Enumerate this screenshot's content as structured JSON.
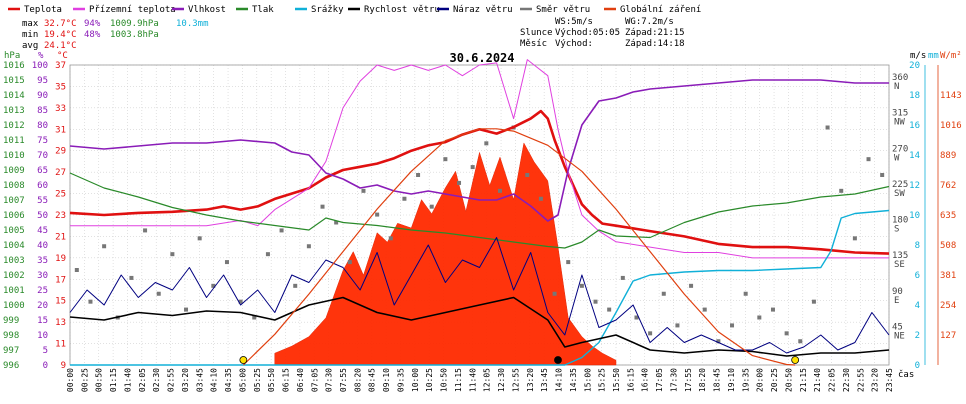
{
  "legend": [
    {
      "label": "Teplota",
      "color": "#e01010"
    },
    {
      "label": "Přízemní teplota",
      "color": "#e040e0"
    },
    {
      "label": "Vlhkost",
      "color": "#8a1cb8"
    },
    {
      "label": "Tlak",
      "color": "#2a8a2a"
    },
    {
      "label": "Srážky",
      "color": "#10b0d8"
    },
    {
      "label": "Rychlost větru",
      "color": "#000000"
    },
    {
      "label": "Náraz větru",
      "color": "#000080"
    },
    {
      "label": "Směr větru",
      "color": "#777777"
    },
    {
      "label": "Globální záření",
      "color": "#e04010"
    }
  ],
  "stats": {
    "max_label": "max",
    "max_temp": "32.7°C",
    "max_hum": "94%",
    "max_press": "1009.9hPa",
    "max_rain": "10.3mm",
    "min_label": "min",
    "min_temp": "19.4°C",
    "min_hum": "48%",
    "min_press": "1003.8hPa",
    "avg_label": "avg",
    "avg_temp": "24.1°C"
  },
  "wind_info": {
    "ws": "WS:5m/s",
    "wg": "WG:7.2m/s",
    "sun_label": "Slunce",
    "sun_rise": "Východ:05:05",
    "sun_set": "Západ:21:15",
    "moon_label": "Měsíc",
    "moon_rise": "Východ:",
    "moon_set": "Západ:14:18"
  },
  "date": "30.6.2024",
  "axis_units": {
    "hpa": "hPa",
    "pct": "%",
    "degc": "°C",
    "ms": "m/s",
    "mm": "mm",
    "wm2": "W/m²",
    "time": "čas"
  },
  "chart_data": {
    "type": "line",
    "title": "30.6.2024",
    "x_ticks": [
      "00:00",
      "00:25",
      "00:50",
      "01:15",
      "01:40",
      "02:05",
      "02:30",
      "02:55",
      "03:20",
      "03:45",
      "04:10",
      "04:35",
      "05:00",
      "05:25",
      "05:50",
      "06:15",
      "06:40",
      "07:05",
      "07:30",
      "07:55",
      "08:20",
      "08:45",
      "09:10",
      "09:35",
      "10:00",
      "10:25",
      "10:50",
      "11:15",
      "11:40",
      "12:05",
      "12:30",
      "12:55",
      "13:20",
      "13:45",
      "14:10",
      "14:35",
      "15:00",
      "15:25",
      "15:50",
      "16:15",
      "16:40",
      "17:05",
      "17:30",
      "17:55",
      "18:20",
      "18:45",
      "19:10",
      "19:35",
      "20:00",
      "20:25",
      "20:50",
      "21:15",
      "21:40",
      "22:05",
      "22:30",
      "22:55",
      "23:20",
      "23:45"
    ],
    "axes": {
      "pressure_hpa": {
        "min": 996,
        "max": 1016,
        "ticks": [
          996,
          997,
          998,
          999,
          1000,
          1001,
          1002,
          1003,
          1004,
          1005,
          1006,
          1007,
          1008,
          1009,
          1010,
          1011,
          1012,
          1013,
          1014,
          1015,
          1016
        ]
      },
      "humidity_pct": {
        "min": 0,
        "max": 100,
        "ticks": [
          0,
          5,
          10,
          15,
          20,
          25,
          30,
          35,
          40,
          45,
          50,
          55,
          60,
          65,
          70,
          75,
          80,
          85,
          90,
          95,
          100
        ]
      },
      "temperature_c": {
        "min": 9,
        "max": 37,
        "ticks": [
          9,
          11,
          13,
          15,
          17,
          19,
          21,
          23,
          25,
          27,
          29,
          31,
          33,
          35,
          37
        ]
      },
      "wind_dir": {
        "ticks": [
          {
            "v": 0,
            "l": ""
          },
          {
            "v": 45,
            "l": "45 NE"
          },
          {
            "v": 90,
            "l": "90 E"
          },
          {
            "v": 135,
            "l": "135 SE"
          },
          {
            "v": 180,
            "l": "180 S"
          },
          {
            "v": 225,
            "l": "225 SW"
          },
          {
            "v": 270,
            "l": "270 W"
          },
          {
            "v": 315,
            "l": "315 NW"
          },
          {
            "v": 360,
            "l": "360 N"
          }
        ]
      },
      "wind_ms": {
        "min": 0,
        "max": 20,
        "ticks": [
          0,
          2,
          4,
          6,
          8,
          10,
          12,
          14,
          16,
          18,
          20
        ]
      },
      "rain_mm": {
        "min": 0,
        "max": 20,
        "ticks": [
          0,
          2,
          4,
          6,
          8,
          10,
          12,
          14,
          16,
          18,
          20
        ]
      },
      "radiation_wm2": {
        "ticks": [
          127,
          254,
          381,
          508,
          635,
          762,
          889,
          1016,
          1143
        ]
      }
    },
    "series": [
      {
        "name": "Teplota",
        "axis": "temperature_c",
        "color": "#e01010",
        "x": [
          0,
          1,
          2,
          3,
          4,
          4.5,
          5,
          5.5,
          6,
          7,
          7.5,
          8,
          8.5,
          9,
          9.5,
          10,
          10.5,
          11,
          11.5,
          12,
          12.5,
          13,
          13.5,
          13.8,
          14,
          14.2,
          14.5,
          15,
          15.3,
          15.6,
          16,
          17,
          18,
          19,
          20,
          21,
          22,
          23,
          24
        ],
        "y": [
          23.2,
          23.0,
          23.2,
          23.3,
          23.5,
          23.8,
          23.5,
          23.8,
          24.5,
          25.5,
          26.5,
          27.2,
          27.5,
          27.8,
          28.3,
          29.0,
          29.5,
          29.8,
          30.5,
          31.0,
          30.6,
          31.2,
          32.0,
          32.7,
          32.0,
          30.0,
          27.5,
          24.0,
          23.0,
          22.2,
          22.0,
          21.5,
          21.0,
          20.3,
          20.0,
          20.0,
          19.8,
          19.5,
          19.4
        ]
      },
      {
        "name": "Přízemní teplota",
        "axis": "temperature_c",
        "color": "#e040e0",
        "x": [
          0,
          2,
          4,
          5,
          5.5,
          6,
          6.5,
          7,
          7.5,
          8,
          8.5,
          9,
          9.5,
          10,
          10.5,
          11,
          11.5,
          12,
          12.5,
          13,
          13.4,
          13.6,
          14,
          14.3,
          14.6,
          15,
          15.5,
          16,
          17,
          18,
          19,
          20,
          21,
          22,
          23,
          24
        ],
        "y": [
          22.0,
          22.0,
          22.0,
          22.5,
          22.0,
          23.5,
          24.5,
          25.5,
          28.0,
          33.0,
          35.5,
          37.0,
          36.5,
          37.0,
          36.5,
          37.0,
          36.0,
          37.0,
          37.2,
          32.0,
          37.5,
          37.0,
          36.0,
          31.0,
          27.0,
          23.0,
          21.5,
          20.5,
          20.0,
          19.5,
          19.5,
          19.0,
          19.0,
          19.0,
          19.0,
          19.0
        ]
      },
      {
        "name": "Vlhkost",
        "axis": "humidity_pct",
        "color": "#8a1cb8",
        "x": [
          0,
          1,
          2,
          3,
          4,
          5,
          6,
          6.5,
          7,
          7.5,
          8,
          8.5,
          9,
          9.5,
          10,
          10.5,
          11,
          11.5,
          12,
          12.5,
          13,
          13.5,
          14,
          14.3,
          14.6,
          15,
          15.5,
          16,
          16.5,
          17,
          18,
          19,
          20,
          21,
          22,
          23,
          24
        ],
        "y": [
          73,
          72,
          73,
          74,
          74,
          75,
          74,
          71,
          70,
          64,
          62,
          59,
          60,
          58,
          57,
          58,
          57,
          56,
          55,
          55,
          57,
          53,
          48,
          50,
          65,
          80,
          88,
          89,
          91,
          92,
          93,
          94,
          95,
          95,
          95,
          94,
          94
        ]
      },
      {
        "name": "Tlak",
        "axis": "pressure_hpa",
        "color": "#2a8a2a",
        "x": [
          0,
          1,
          2,
          3,
          4,
          5,
          6,
          7,
          7.5,
          8,
          9,
          10,
          11,
          12,
          13,
          14,
          14.5,
          15,
          15.5,
          16,
          17,
          17.5,
          18,
          19,
          20,
          21,
          22,
          23,
          24
        ],
        "y": [
          1008.8,
          1007.8,
          1007.2,
          1006.5,
          1006.0,
          1005.6,
          1005.3,
          1005.0,
          1005.8,
          1005.5,
          1005.3,
          1005.0,
          1004.8,
          1004.5,
          1004.2,
          1003.9,
          1003.8,
          1004.2,
          1005.0,
          1004.6,
          1004.5,
          1005.0,
          1005.5,
          1006.2,
          1006.6,
          1006.8,
          1007.2,
          1007.4,
          1007.9
        ]
      },
      {
        "name": "Srážky",
        "axis": "rain_mm",
        "color": "#10b0d8",
        "x": [
          0,
          14.5,
          15,
          15.5,
          16,
          16.5,
          17,
          17.5,
          18,
          19,
          20,
          21,
          22,
          22.3,
          22.6,
          23,
          24
        ],
        "y": [
          0,
          0,
          0.5,
          1.5,
          3.5,
          5.6,
          6.0,
          6.1,
          6.2,
          6.3,
          6.3,
          6.4,
          6.5,
          7.6,
          9.8,
          10.1,
          10.3
        ]
      },
      {
        "name": "Rychlost větru",
        "axis": "wind_ms",
        "color": "#000000",
        "x": [
          0,
          1,
          2,
          3,
          4,
          5,
          6,
          7,
          8,
          9,
          10,
          11,
          12,
          13,
          14,
          14.5,
          15,
          16,
          17,
          18,
          19,
          20,
          21,
          22,
          23,
          24
        ],
        "y": [
          3.2,
          3.0,
          3.5,
          3.3,
          3.6,
          3.5,
          3.0,
          4.0,
          4.5,
          3.5,
          3.0,
          3.5,
          4.0,
          4.5,
          3.0,
          1.2,
          1.5,
          2.0,
          1.0,
          0.8,
          1.0,
          0.9,
          0.6,
          0.8,
          0.8,
          1.0
        ]
      },
      {
        "name": "Náraz větru",
        "axis": "wind_ms",
        "color": "#000080",
        "x": [
          0,
          0.5,
          1,
          1.5,
          2,
          2.5,
          3,
          3.5,
          4,
          4.5,
          5,
          5.5,
          6,
          6.5,
          7,
          7.5,
          8,
          8.5,
          9,
          9.5,
          10,
          10.5,
          11,
          11.5,
          12,
          12.5,
          13,
          13.5,
          14,
          14.5,
          15,
          15.5,
          16,
          16.5,
          17,
          17.5,
          18,
          18.5,
          19,
          19.5,
          20,
          20.5,
          21,
          21.5,
          22,
          22.5,
          23,
          23.5,
          24
        ],
        "y": [
          3.5,
          5.0,
          4.0,
          6.0,
          4.5,
          5.5,
          5.0,
          6.5,
          4.5,
          6.0,
          4.0,
          5.0,
          3.5,
          6.0,
          5.5,
          7.0,
          6.5,
          5.0,
          7.5,
          4.0,
          6.0,
          8.0,
          5.5,
          7.0,
          6.5,
          8.5,
          5.0,
          7.5,
          3.5,
          2.0,
          6.0,
          2.5,
          3.0,
          4.0,
          1.5,
          2.5,
          1.5,
          2.0,
          1.5,
          1.0,
          1.0,
          1.5,
          0.8,
          1.2,
          2.0,
          1.0,
          1.5,
          3.5,
          2.0
        ]
      },
      {
        "name": "Globální záření",
        "axis": "radiation_wm2",
        "color": "#e04010",
        "x": [
          5.08,
          6,
          7,
          8,
          9,
          10,
          11,
          12,
          12.5,
          13,
          14,
          15,
          16,
          17,
          18,
          19,
          20,
          21,
          21.25
        ],
        "y": [
          0,
          130,
          300,
          480,
          660,
          820,
          950,
          1000,
          1000,
          990,
          930,
          820,
          660,
          480,
          300,
          140,
          40,
          2,
          0
        ]
      }
    ],
    "direction_points": {
      "axis": "wind_dir",
      "x": [
        0.2,
        0.6,
        1,
        1.4,
        1.8,
        2.2,
        2.6,
        3,
        3.4,
        3.8,
        4.2,
        4.6,
        5,
        5.4,
        5.8,
        6.2,
        6.6,
        7,
        7.4,
        7.8,
        8.2,
        8.6,
        9,
        9.4,
        9.8,
        10.2,
        10.6,
        11,
        11.4,
        11.8,
        12.2,
        12.6,
        13,
        13.4,
        13.8,
        14.2,
        14.6,
        15,
        15.4,
        15.8,
        16.2,
        16.6,
        17,
        17.4,
        17.8,
        18.2,
        18.6,
        19,
        19.4,
        19.8,
        20.2,
        20.6,
        21,
        21.4,
        21.8,
        22.2,
        22.6,
        23,
        23.4,
        23.8
      ],
      "y": [
        120,
        80,
        150,
        60,
        110,
        170,
        90,
        140,
        70,
        160,
        100,
        130,
        80,
        60,
        140,
        170,
        100,
        150,
        200,
        180,
        130,
        220,
        190,
        160,
        210,
        240,
        200,
        260,
        230,
        250,
        280,
        220,
        300,
        240,
        210,
        90,
        130,
        100,
        80,
        70,
        110,
        60,
        40,
        90,
        50,
        100,
        70,
        30,
        50,
        90,
        60,
        70,
        40,
        30,
        80,
        300,
        220,
        160,
        260,
        240
      ]
    },
    "radiation_bars": {
      "x": [
        6,
        6.5,
        7,
        7.5,
        8,
        8.3,
        8.6,
        9,
        9.3,
        9.6,
        10,
        10.3,
        10.6,
        11,
        11.3,
        11.6,
        12,
        12.3,
        12.6,
        13,
        13.3,
        13.6,
        14,
        14.3,
        14.6,
        15,
        15.3,
        15.6,
        16
      ],
      "y": [
        50,
        80,
        120,
        200,
        400,
        480,
        380,
        560,
        520,
        600,
        580,
        700,
        640,
        750,
        820,
        650,
        900,
        760,
        880,
        700,
        940,
        860,
        780,
        500,
        200,
        120,
        80,
        50,
        20
      ]
    }
  }
}
